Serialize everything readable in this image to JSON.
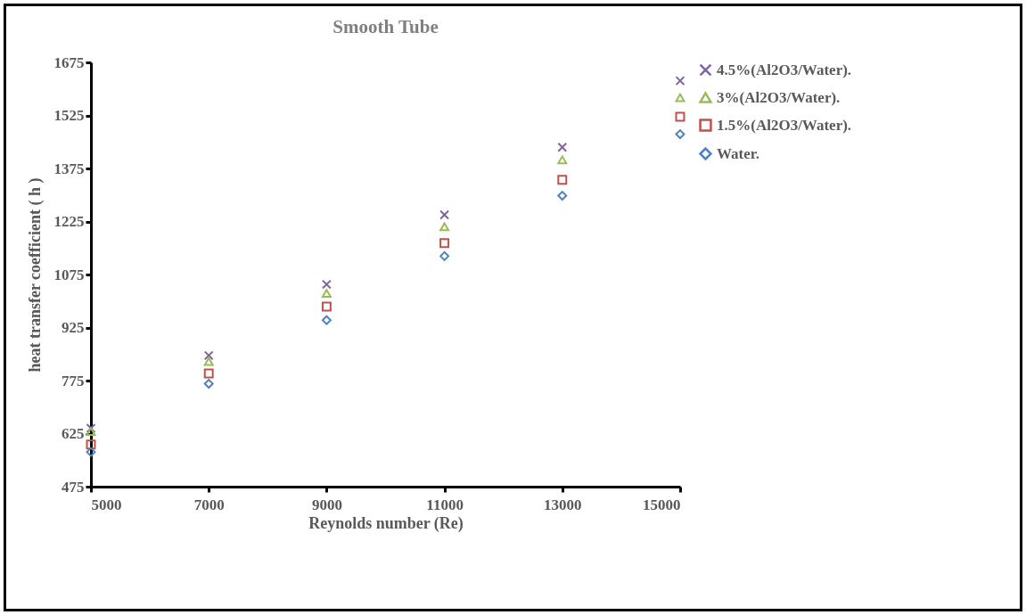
{
  "chart_data": {
    "type": "scatter",
    "title": "Smooth Tube",
    "xlabel": "Reynolds number (Re)",
    "ylabel": "heat transfer coefficient ( h )",
    "x": [
      5000,
      7000,
      9000,
      11000,
      13000,
      15000
    ],
    "series": [
      {
        "name": "4.5%(Al2O3/Water).",
        "color": "#7e649e",
        "marker": "cross",
        "values": [
          640,
          846,
          1047,
          1244,
          1435,
          1623
        ]
      },
      {
        "name": "3%(Al2O3/Water).",
        "color": "#9bbb59",
        "marker": "triangle",
        "values": [
          631,
          829,
          1022,
          1210,
          1399,
          1575
        ]
      },
      {
        "name": "1.5%(Al2O3/Water).",
        "color": "#c0504d",
        "marker": "square",
        "values": [
          594,
          795,
          984,
          1164,
          1343,
          1521
        ]
      },
      {
        "name": "Water.",
        "color": "#4f81bd",
        "marker": "diamond",
        "values": [
          573,
          766,
          946,
          1127,
          1298,
          1472
        ]
      }
    ],
    "xlim": [
      5000,
      15000
    ],
    "xticks": [
      5000,
      7000,
      9000,
      11000,
      13000,
      15000
    ],
    "ylim": [
      475,
      1675
    ],
    "yticks": [
      475,
      625,
      775,
      925,
      1075,
      1225,
      1375,
      1525,
      1675
    ],
    "grid": false,
    "legend": "right"
  }
}
